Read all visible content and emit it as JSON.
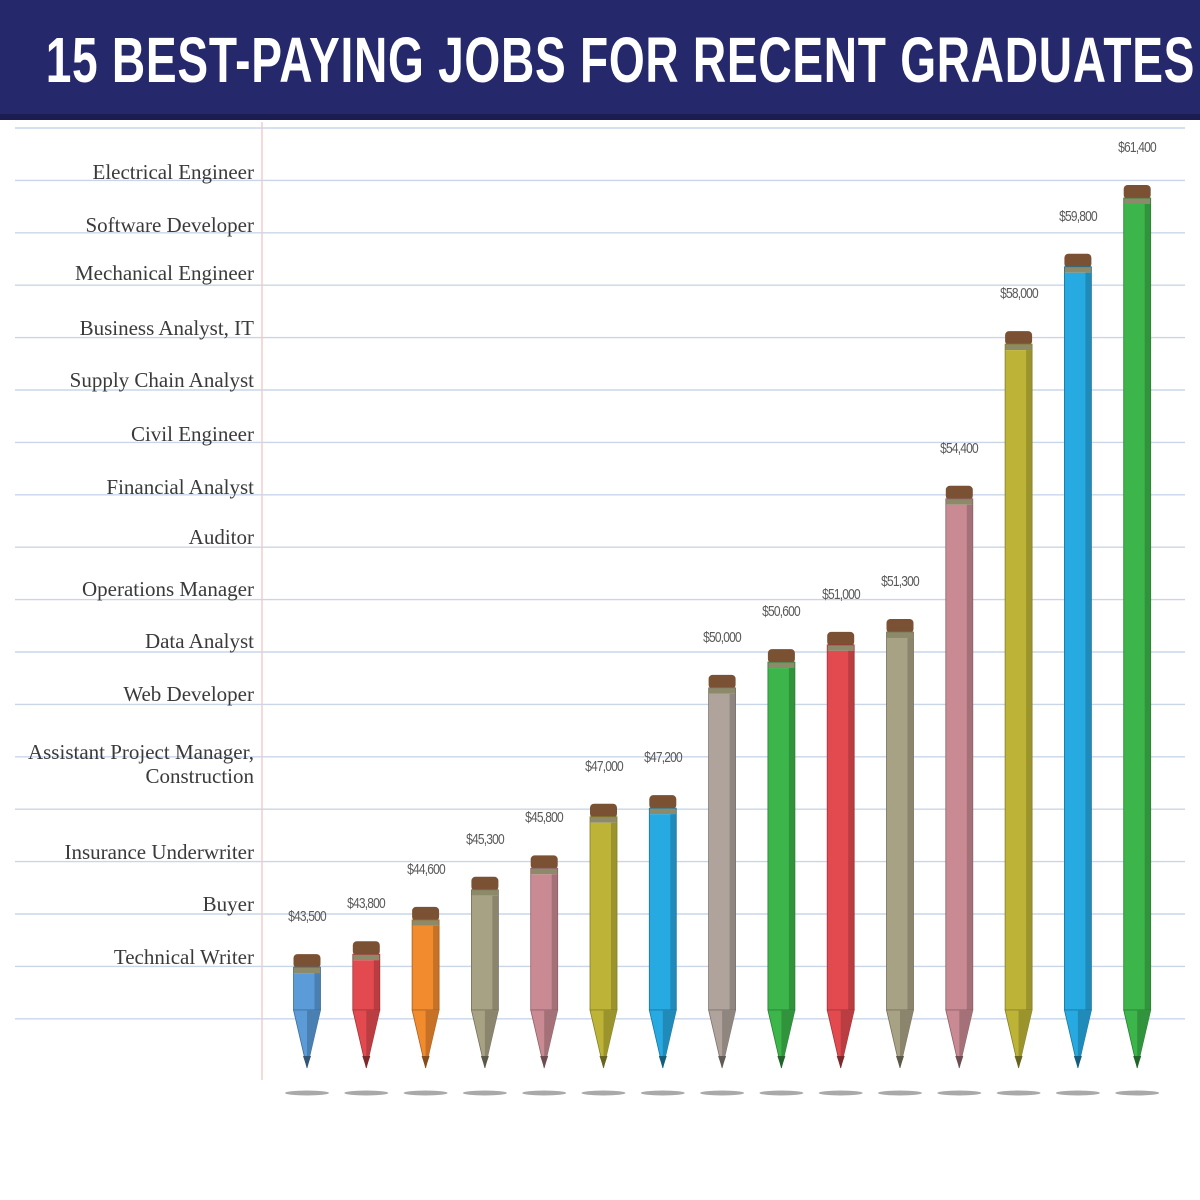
{
  "title": "15 BEST-PAYING JOBS FOR RECENT GRADUATES",
  "chart_data": {
    "type": "bar",
    "title": "15 BEST-PAYING JOBS FOR RECENT GRADUATES",
    "categories": [
      "Technical Writer",
      "Buyer",
      "Insurance Underwriter",
      "Assistant Project Manager,\nConstruction",
      "Web Developer",
      "Data Analyst",
      "Operations Manager",
      "Auditor",
      "Financial Analyst",
      "Civil Engineer",
      "Supply Chain Analyst",
      "Business Analyst, IT",
      "Mechanical Engineer",
      "Software Developer",
      "Electrical Engineer"
    ],
    "values": [
      43500,
      43800,
      44600,
      45300,
      45800,
      47000,
      47200,
      50000,
      50600,
      51000,
      51300,
      54400,
      58000,
      59800,
      61400
    ],
    "value_labels": [
      "$43,500",
      "$43,800",
      "$44,600",
      "$45,300",
      "$45,800",
      "$47,000",
      "$47,200",
      "$50,000",
      "$50,600",
      "$51,000",
      "$51,300",
      "$54,400",
      "$58,000",
      "$59,800",
      "$61,400"
    ],
    "colors": [
      "#5a9bd8",
      "#e34a4f",
      "#f28a2e",
      "#a8a284",
      "#c98a93",
      "#bdb437",
      "#27a9e1",
      "#b0a39c",
      "#3cb54a",
      "#e34a4f",
      "#a8a284",
      "#c98a93",
      "#bdb437",
      "#27a9e1",
      "#3cb54a"
    ],
    "xlabel": "",
    "ylabel": "",
    "grid": true
  }
}
